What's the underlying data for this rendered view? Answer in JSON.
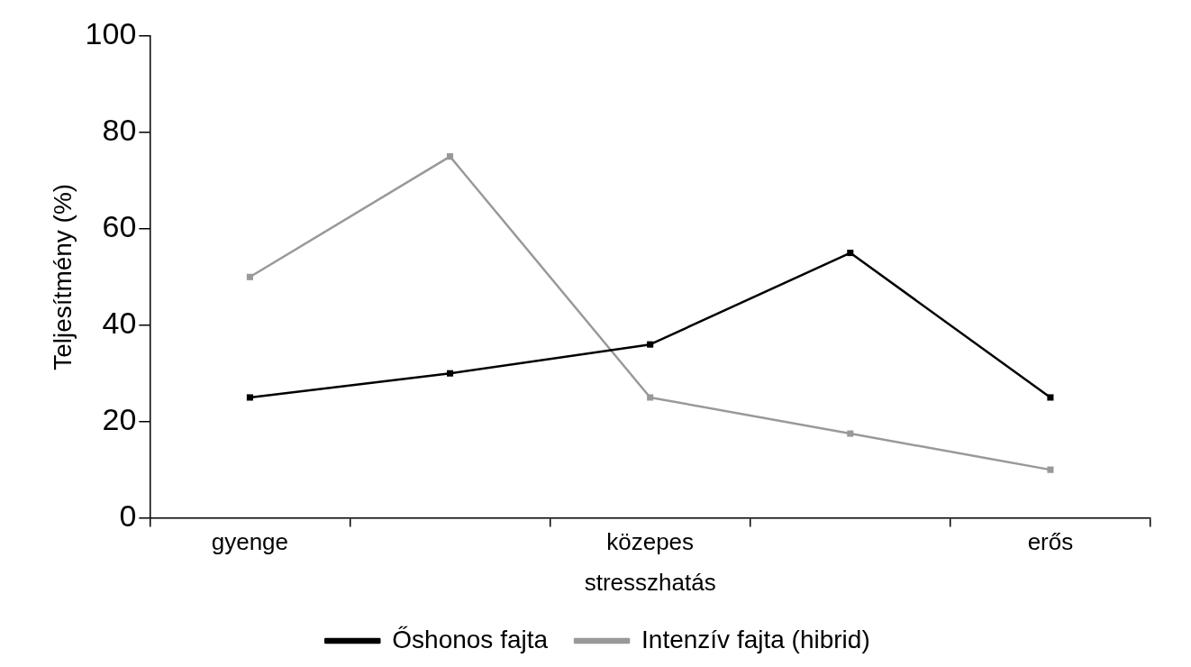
{
  "chart_data": {
    "type": "line",
    "xlabel": "stresszhatás",
    "ylabel": "Teljesítmény (%)",
    "categories": [
      "gyenge",
      null,
      "közepes",
      null,
      "erős"
    ],
    "series": [
      {
        "name": "Őshonos fajta",
        "color": "#000000",
        "values": [
          25,
          30,
          36,
          55,
          25
        ]
      },
      {
        "name": "Intenzív fajta (hibrid)",
        "color": "#999999",
        "values": [
          50,
          75,
          25,
          17.5,
          10
        ]
      }
    ],
    "ylim": [
      0,
      100
    ],
    "yticks": [
      0,
      20,
      40,
      60,
      80,
      100
    ],
    "grid": false,
    "legend": "bottom",
    "marker": "square",
    "line_style": "solid"
  }
}
